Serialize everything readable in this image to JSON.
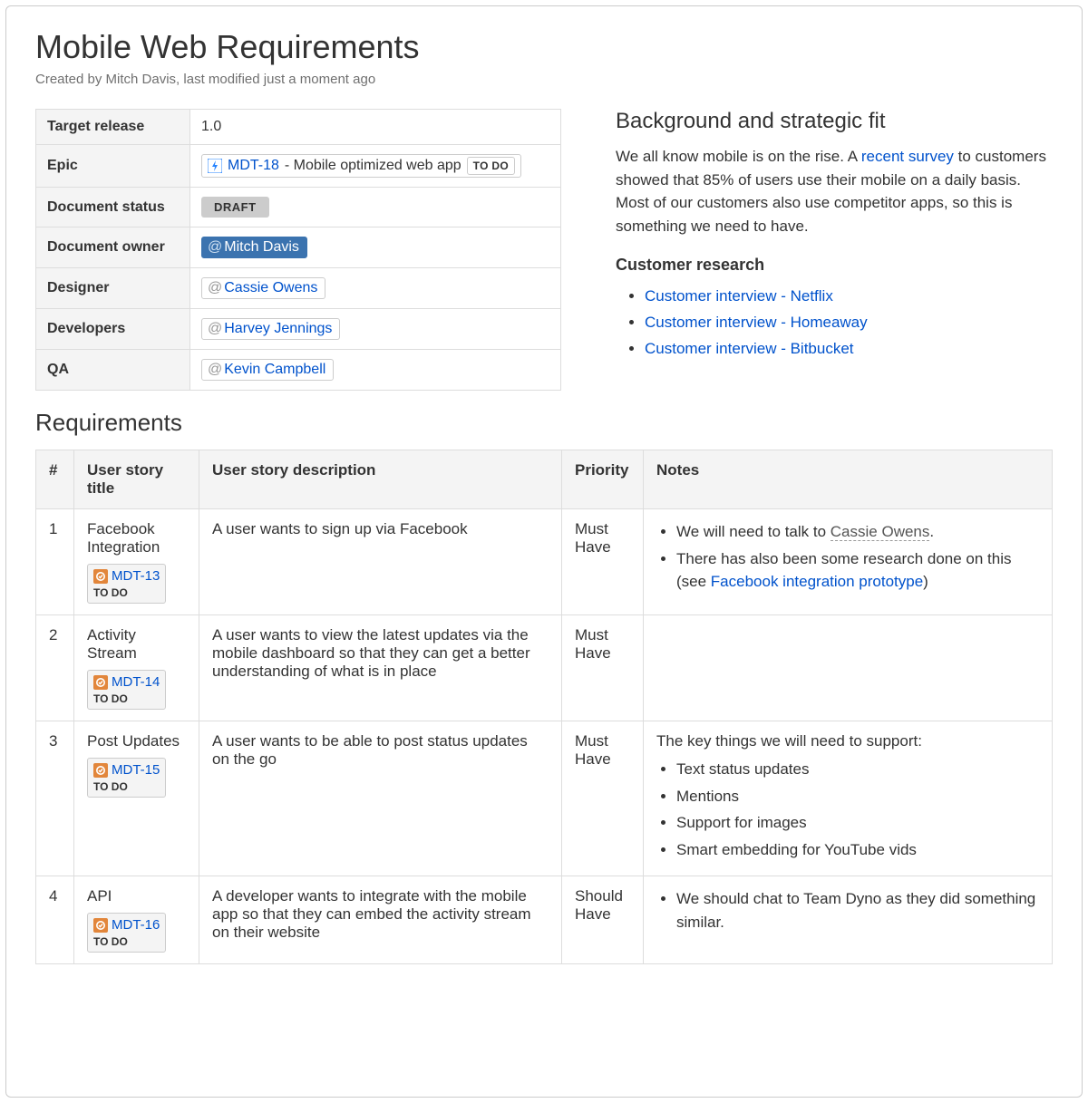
{
  "page": {
    "title": "Mobile Web Requirements",
    "byline": "Created by Mitch Davis, last modified just a moment ago"
  },
  "meta": {
    "rows": {
      "target_release": {
        "label": "Target release",
        "value": "1.0"
      },
      "epic": {
        "label": "Epic",
        "key": "MDT-18",
        "summary": " - Mobile optimized web app",
        "status": "TO DO"
      },
      "doc_status": {
        "label": "Document status",
        "value": "DRAFT"
      },
      "doc_owner": {
        "label": "Document owner",
        "name": "Mitch Davis"
      },
      "designer": {
        "label": "Designer",
        "name": "Cassie Owens"
      },
      "developers": {
        "label": "Developers",
        "name": "Harvey Jennings"
      },
      "qa": {
        "label": "QA",
        "name": "Kevin Campbell"
      }
    }
  },
  "side": {
    "heading": "Background and strategic fit",
    "para_pre": "We all know mobile is on the rise. A ",
    "link_text": "recent survey",
    "para_post": " to customers showed that 85% of users use their mobile on a daily basis. Most of our customers also use competitor apps, so this is something we need to have.",
    "subheading": "Customer research",
    "links": [
      "Customer interview - Netflix",
      "Customer interview - Homeaway",
      "Customer interview - Bitbucket"
    ]
  },
  "requirements": {
    "heading": "Requirements",
    "columns": [
      "#",
      "User story title",
      "User story description",
      "Priority",
      "Notes"
    ],
    "rows": [
      {
        "num": "1",
        "title": "Facebook Integration",
        "issue_key": "MDT-13",
        "issue_status": "TO DO",
        "description": "A user wants to sign up via Facebook",
        "priority": "Must Have",
        "notes_type": "list_links",
        "note1_pre": "We will need to talk to ",
        "note1_link": "Cassie Owens",
        "note1_post": ".",
        "note2_pre": "There has also been some research done on this (see ",
        "note2_link": "Facebook integration prototype",
        "note2_post": ")"
      },
      {
        "num": "2",
        "title": "Activity Stream",
        "issue_key": "MDT-14",
        "issue_status": "TO DO",
        "description": "A user wants to view the latest updates via the mobile dashboard so that they can get a better understanding of what is in place",
        "priority": "Must Have",
        "notes_type": "empty"
      },
      {
        "num": "3",
        "title": "Post Updates",
        "issue_key": "MDT-15",
        "issue_status": "TO DO",
        "description": "A user wants to be able to post status updates on the go",
        "priority": "Must Have",
        "notes_type": "lead_list",
        "notes_lead": "The key things we will need to support:",
        "notes_items": [
          "Text status updates",
          "Mentions",
          "Support for images",
          "Smart embedding for YouTube vids"
        ]
      },
      {
        "num": "4",
        "title": "API",
        "issue_key": "MDT-16",
        "issue_status": "TO DO",
        "description": "A developer wants to integrate with the mobile app so that they can embed the activity stream on their website",
        "priority": "Should Have",
        "notes_type": "list_plain",
        "notes_items": [
          "We should chat to Team Dyno as they did something similar."
        ]
      }
    ]
  },
  "colors": {
    "link": "#0052cc",
    "mention_bg": "#3b73af",
    "border": "#dddddd",
    "header_bg": "#f4f4f4"
  }
}
